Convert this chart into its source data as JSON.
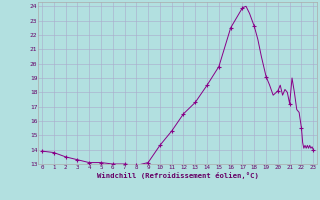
{
  "x_data": [
    0,
    1,
    2,
    3,
    4,
    5,
    6,
    7,
    8,
    9,
    10,
    11,
    12,
    13,
    14,
    15,
    16,
    16.5,
    17,
    17.3,
    17.6,
    18,
    18.3,
    18.6,
    19,
    19.3,
    19.6,
    20,
    20.2,
    20.4,
    20.6,
    20.8,
    21,
    21.2,
    21.4,
    21.6,
    21.8,
    22,
    22.1,
    22.2,
    22.3,
    22.4,
    22.5,
    22.6,
    22.7,
    22.8,
    22.9,
    23
  ],
  "y_data": [
    13.9,
    13.8,
    13.5,
    13.3,
    13.1,
    13.1,
    13.0,
    13.0,
    12.9,
    13.1,
    14.3,
    15.3,
    16.5,
    17.3,
    18.5,
    19.8,
    22.5,
    23.2,
    23.9,
    24.0,
    23.5,
    22.6,
    21.7,
    20.5,
    19.1,
    18.5,
    17.8,
    18.1,
    18.5,
    17.8,
    18.2,
    18.0,
    17.2,
    19.0,
    18.0,
    16.8,
    16.6,
    15.5,
    14.5,
    14.1,
    14.3,
    14.1,
    14.3,
    14.1,
    14.3,
    14.1,
    14.2,
    14.0
  ],
  "x_markers": [
    0,
    1,
    2,
    3,
    4,
    5,
    6,
    7,
    8,
    9,
    10,
    11,
    12,
    13,
    14,
    15,
    16,
    17,
    18,
    19,
    20,
    21,
    22,
    23
  ],
  "y_markers": [
    13.9,
    13.8,
    13.5,
    13.3,
    13.1,
    13.1,
    13.0,
    13.0,
    12.9,
    13.1,
    14.3,
    15.3,
    16.5,
    17.3,
    18.5,
    19.8,
    22.5,
    23.9,
    22.6,
    19.1,
    18.1,
    17.2,
    15.5,
    14.0
  ],
  "line_color": "#880088",
  "bg_color": "#b2e0e0",
  "grid_color": "#aaaacc",
  "xlabel": "Windchill (Refroidissement éolien,°C)",
  "ylim": [
    13,
    24.3
  ],
  "xlim": [
    -0.3,
    23.3
  ],
  "yticks": [
    13,
    14,
    15,
    16,
    17,
    18,
    19,
    20,
    21,
    22,
    23,
    24
  ],
  "xticks": [
    0,
    1,
    2,
    3,
    4,
    5,
    6,
    7,
    8,
    9,
    10,
    11,
    12,
    13,
    14,
    15,
    16,
    17,
    18,
    19,
    20,
    21,
    22,
    23
  ]
}
